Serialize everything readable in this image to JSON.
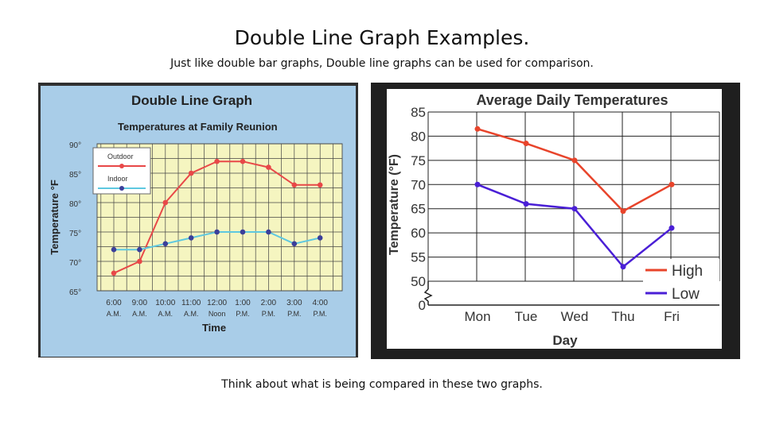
{
  "slide": {
    "title": "Double Line Graph Examples.",
    "subtitle": "Just like double bar graphs, Double line graphs can be used for comparison.",
    "caption": "Think about what is being compared in these two graphs."
  },
  "chart_data": [
    {
      "type": "line",
      "heading": "Double Line Graph",
      "title": "Temperatures at Family Reunion",
      "xlabel": "Time",
      "ylabel": "Temperature °F",
      "categories": [
        [
          "6:00",
          "A.M."
        ],
        [
          "9:00",
          "A.M."
        ],
        [
          "10:00",
          "A.M."
        ],
        [
          "11:00",
          "A.M."
        ],
        [
          "12:00",
          "Noon"
        ],
        [
          "1:00",
          "P.M."
        ],
        [
          "2:00",
          "P.M."
        ],
        [
          "3:00",
          "P.M."
        ],
        [
          "4:00",
          "P.M."
        ]
      ],
      "yticks": [
        "90°",
        "85°",
        "80°",
        "75°",
        "70°",
        "65°"
      ],
      "ytick_values": [
        90,
        85,
        80,
        75,
        70,
        65
      ],
      "ylim": [
        65,
        90
      ],
      "grid": true,
      "legend_position": "top-left",
      "series": [
        {
          "name": "Outdoor",
          "color": "#e84848",
          "values": [
            68,
            70,
            80,
            85,
            87,
            87,
            86,
            83,
            83
          ]
        },
        {
          "name": "Indoor",
          "color": "#5ec8e0",
          "values": [
            72,
            72,
            73,
            74,
            75,
            75,
            75,
            73,
            74
          ]
        }
      ],
      "marker_color": "#3b3f9a",
      "background": "#a9cde8",
      "plot_background": "#f5f5c0"
    },
    {
      "type": "line",
      "title": "Average Daily Temperatures",
      "xlabel": "Day",
      "ylabel": "Temperature (°F)",
      "categories": [
        "Mon",
        "Tue",
        "Wed",
        "Thu",
        "Fri"
      ],
      "yticks": [
        "85",
        "80",
        "75",
        "70",
        "65",
        "60",
        "55",
        "50",
        "0"
      ],
      "ytick_values": [
        85,
        80,
        75,
        70,
        65,
        60,
        55,
        50,
        0
      ],
      "ylim": [
        50,
        85
      ],
      "axis_break": true,
      "grid": true,
      "legend_position": "bottom-right",
      "series": [
        {
          "name": "High",
          "color": "#e8442b",
          "values": [
            81.5,
            78.5,
            75,
            64.5,
            70
          ]
        },
        {
          "name": "Low",
          "color": "#4a1fd6",
          "values": [
            70,
            66,
            65,
            53,
            61
          ]
        }
      ]
    }
  ]
}
